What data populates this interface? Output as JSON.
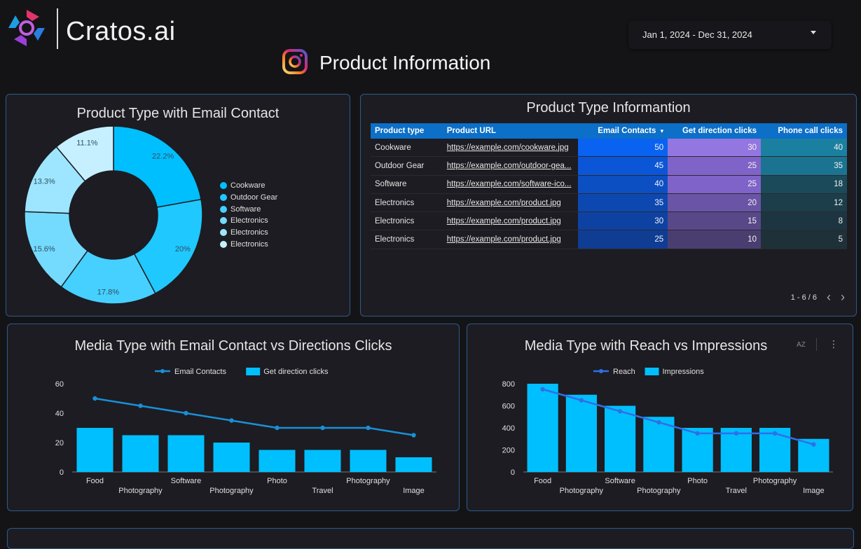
{
  "header": {
    "brand": "Cratos.ai",
    "date_range": "Jan 1, 2024 - Dec 31, 2024",
    "page_title": "Product Information"
  },
  "colors": {
    "accent": "#00bfff",
    "table_header": "#0c6fc8",
    "panel_border": "#2d5b8c"
  },
  "donut_panel": {
    "title": "Product Type with Email Contact",
    "chart_data": {
      "type": "pie",
      "title": "Product Type with Email Contact",
      "categories": [
        "Cookware",
        "Outdoor Gear",
        "Software",
        "Electronics",
        "Electronics",
        "Electronics"
      ],
      "values": [
        22.2,
        20,
        17.8,
        15.6,
        13.3,
        11.1
      ],
      "labels": [
        "22.2%",
        "20%",
        "17.8%",
        "15.6%",
        "13.3%",
        "11.1%"
      ],
      "colors": [
        "#00bfff",
        "#1fc8ff",
        "#45d0ff",
        "#74dbff",
        "#9ee6ff",
        "#c6f0ff"
      ],
      "legend_position": "right"
    }
  },
  "table_panel": {
    "title": "Product Type Informantion",
    "columns": [
      "Product type",
      "Product URL",
      "Email Contacts",
      "Get direction clicks",
      "Phone call clicks"
    ],
    "sort_indicator": "▾",
    "rows": [
      {
        "type": "Cookware",
        "url": "https://example.com/cookware.jpg",
        "email": "50",
        "direction": "30",
        "phone": "40",
        "email_bg": "#0a62f0",
        "dir_bg": "#9376e0",
        "phone_bg": "#1b7fa0"
      },
      {
        "type": "Outdoor Gear",
        "url": "https://example.com/outdoor-gea...",
        "email": "45",
        "direction": "25",
        "phone": "35",
        "email_bg": "#0b56d6",
        "dir_bg": "#7f63c8",
        "phone_bg": "#1a7390"
      },
      {
        "type": "Software",
        "url": "https://example.com/software-ico...",
        "email": "40",
        "direction": "25",
        "phone": "18",
        "email_bg": "#0c4fc2",
        "dir_bg": "#7f63c8",
        "phone_bg": "#1b4a5a"
      },
      {
        "type": "Electronics",
        "url": "https://example.com/product.jpg",
        "email": "35",
        "direction": "20",
        "phone": "12",
        "email_bg": "#0d48b0",
        "dir_bg": "#6a54a6",
        "phone_bg": "#1c3d4a"
      },
      {
        "type": "Electronics",
        "url": "https://example.com/product.jpg",
        "email": "30",
        "direction": "15",
        "phone": "8",
        "email_bg": "#0e42a2",
        "dir_bg": "#584888",
        "phone_bg": "#1d3540"
      },
      {
        "type": "Electronics",
        "url": "https://example.com/product.jpg",
        "email": "25",
        "direction": "10",
        "phone": "5",
        "email_bg": "#0f3d94",
        "dir_bg": "#4a3e70",
        "phone_bg": "#1e3038"
      }
    ],
    "pager_text": "1 - 6 / 6"
  },
  "media_email_panel": {
    "title": "Media Type with Email Contact vs Directions Clicks",
    "chart_data": {
      "type": "bar",
      "title": "Media Type with Email Contact vs Directions Clicks",
      "categories": [
        "Food",
        "Photography",
        "Software",
        "Photography",
        "Photo",
        "Travel",
        "Photography",
        "Image"
      ],
      "series": [
        {
          "name": "Get direction clicks",
          "kind": "bar",
          "values": [
            30,
            25,
            25,
            20,
            15,
            15,
            15,
            10
          ]
        },
        {
          "name": "Email Contacts",
          "kind": "line",
          "values": [
            50,
            45,
            40,
            35,
            30,
            30,
            30,
            25
          ]
        }
      ],
      "yticks": [
        "0",
        "20",
        "40",
        "60"
      ],
      "ylim": [
        0,
        60
      ],
      "legend_position": "top",
      "bar_color": "#00bfff",
      "line_color": "#1a8fd6"
    }
  },
  "media_reach_panel": {
    "title": "Media Type with Reach vs Impressions",
    "sort_icon_label": "AZ",
    "chart_data": {
      "type": "bar",
      "title": "Media Type with Reach vs Impressions",
      "categories": [
        "Food",
        "Photography",
        "Software",
        "Photography",
        "Photo",
        "Travel",
        "Photography",
        "Image"
      ],
      "series": [
        {
          "name": "Impressions",
          "kind": "bar",
          "values": [
            800,
            700,
            600,
            500,
            400,
            400,
            400,
            300
          ]
        },
        {
          "name": "Reach",
          "kind": "line",
          "values": [
            750,
            650,
            550,
            450,
            350,
            350,
            350,
            250
          ]
        }
      ],
      "yticks": [
        "0",
        "200",
        "400",
        "600",
        "800"
      ],
      "ylim": [
        0,
        800
      ],
      "legend_position": "top",
      "bar_color": "#00bfff",
      "line_color": "#2f6fe6"
    }
  }
}
